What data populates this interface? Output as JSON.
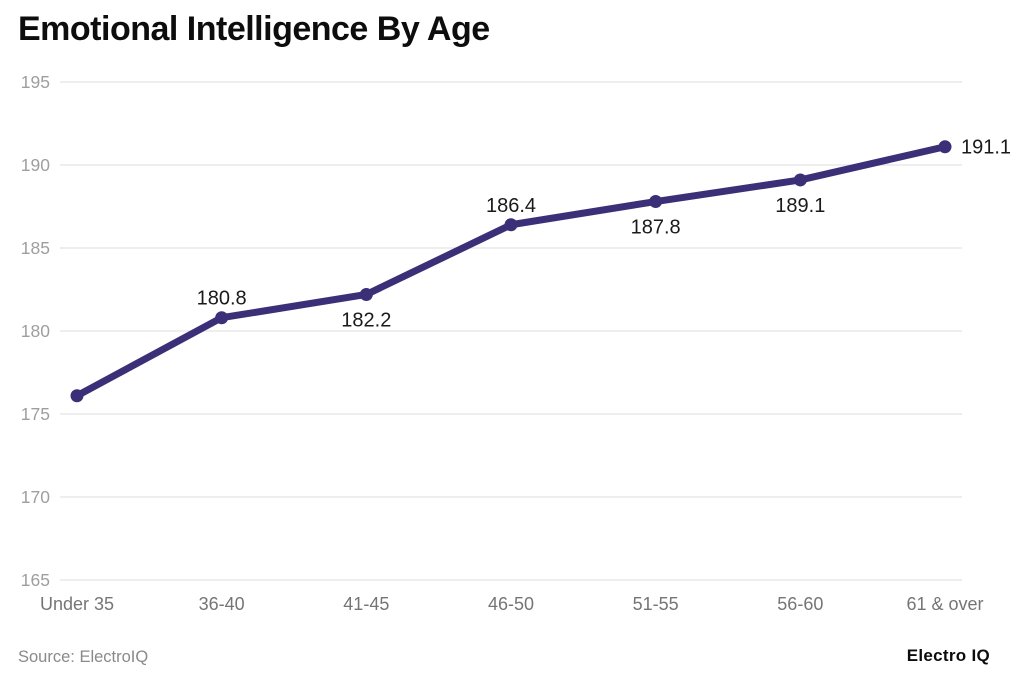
{
  "chart_data": {
    "type": "line",
    "title": "Emotional Intelligence By Age",
    "categories": [
      "Under 35",
      "36-40",
      "41-45",
      "46-50",
      "51-55",
      "56-60",
      "61 & over"
    ],
    "series": [
      {
        "name": "Emotional Intelligence",
        "values": [
          176.1,
          180.8,
          182.2,
          186.4,
          187.8,
          189.1,
          191.1
        ],
        "point_labels": [
          "",
          "180.8",
          "182.2",
          "186.4",
          "187.8",
          "189.1",
          "191.1"
        ],
        "label_placement": [
          "none",
          "above",
          "below",
          "above",
          "below",
          "below",
          "right"
        ]
      }
    ],
    "xlabel": "",
    "ylabel": "",
    "ylim": [
      165,
      195
    ],
    "yticks": [
      165,
      170,
      175,
      180,
      185,
      190,
      195
    ],
    "grid": "horizontal",
    "legend": "none",
    "colors": {
      "line": "#3b3078",
      "point": "#3b3078",
      "grid": "#e9e9e9",
      "title": "#0d0d0d",
      "y_tick": "#9e9e9e",
      "x_tick": "#757575",
      "data_label": "#1a1a1a",
      "background": "#ffffff"
    }
  },
  "footer": {
    "source": "Source: ElectroIQ",
    "brand": "Electro IQ"
  }
}
